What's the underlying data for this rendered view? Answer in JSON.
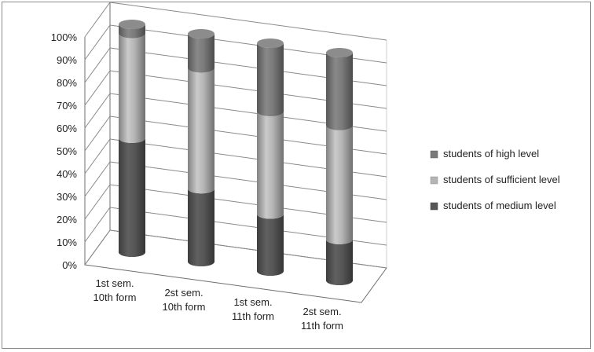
{
  "chart_data": {
    "type": "bar",
    "stacked": true,
    "percent": true,
    "three_d": true,
    "categories": [
      [
        "1st sem.",
        "10th form"
      ],
      [
        "2st sem.",
        "10th form"
      ],
      [
        "1st sem.",
        "11th form"
      ],
      [
        "2st sem.",
        "11th form"
      ]
    ],
    "series": [
      {
        "name": "students of medium level",
        "color": "#565656",
        "values": [
          50,
          32,
          25,
          18
        ]
      },
      {
        "name": "students of sufficient level",
        "color": "#b4b4b4",
        "values": [
          46,
          53,
          45,
          50
        ]
      },
      {
        "name": "students of high level",
        "color": "#7a7a7a",
        "values": [
          4,
          15,
          30,
          32
        ]
      }
    ],
    "legend_order": [
      "students of high level",
      "students of sufficient level",
      "students of medium level"
    ],
    "yticks": [
      "0%",
      "10%",
      "20%",
      "30%",
      "40%",
      "50%",
      "60%",
      "70%",
      "80%",
      "90%",
      "100%"
    ],
    "ylim": [
      0,
      100
    ],
    "grid": true,
    "legend_position": "right"
  }
}
